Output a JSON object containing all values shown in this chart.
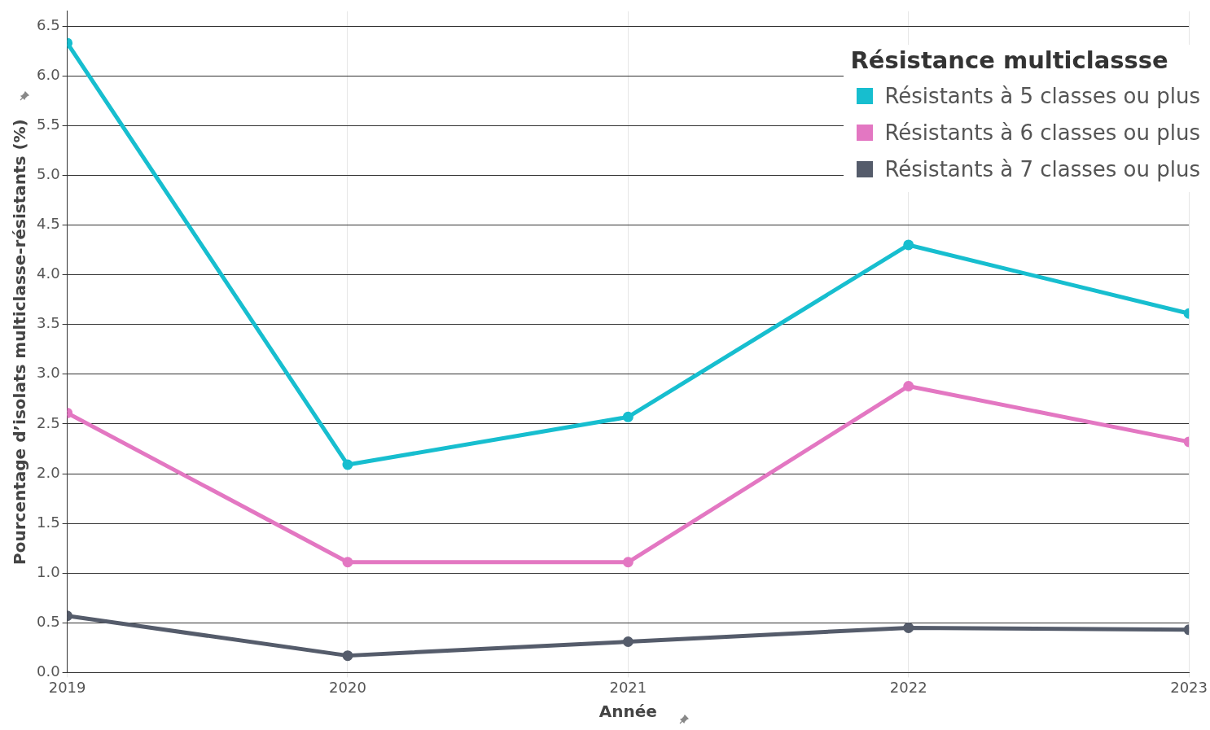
{
  "chart_data": {
    "type": "line",
    "xlabel": "Année",
    "ylabel": "Pourcentage d’isolats multiclasse-résistants (%)",
    "legend_title": "Résistance multiclassse",
    "x": [
      2019,
      2020,
      2021,
      2022,
      2023
    ],
    "xlim": [
      2019,
      2023
    ],
    "xticks": [
      2019,
      2020,
      2021,
      2022,
      2023
    ],
    "ylim": [
      0,
      6.65
    ],
    "yticks": [
      {
        "value": 0,
        "label": "0.0"
      },
      0.5,
      {
        "value": 1,
        "label": "1.0"
      },
      1.5,
      {
        "value": 2,
        "label": "2.0"
      },
      2.5,
      {
        "value": 3,
        "label": "3.0"
      },
      3.5,
      {
        "value": 4,
        "label": "4.0"
      },
      4.5,
      {
        "value": 5,
        "label": "5.0"
      },
      5.5,
      {
        "value": 6,
        "label": "6.0"
      },
      6.5
    ],
    "grid": true,
    "legend": "top right",
    "marker": "circle",
    "line_style": "solid",
    "series": [
      {
        "name": "Résistants à 5 classes ou plus",
        "color": "#17becf",
        "values": [
          6.33,
          2.09,
          2.57,
          4.3,
          3.61
        ]
      },
      {
        "name": "Résistants à 6 classes ou plus",
        "color": "#e377c2",
        "values": [
          2.61,
          1.11,
          1.11,
          2.88,
          2.32
        ]
      },
      {
        "name": "Résistants à 7 classes ou plus",
        "color": "#555c6b",
        "values": [
          0.57,
          0.17,
          0.31,
          0.45,
          0.43
        ]
      }
    ]
  }
}
